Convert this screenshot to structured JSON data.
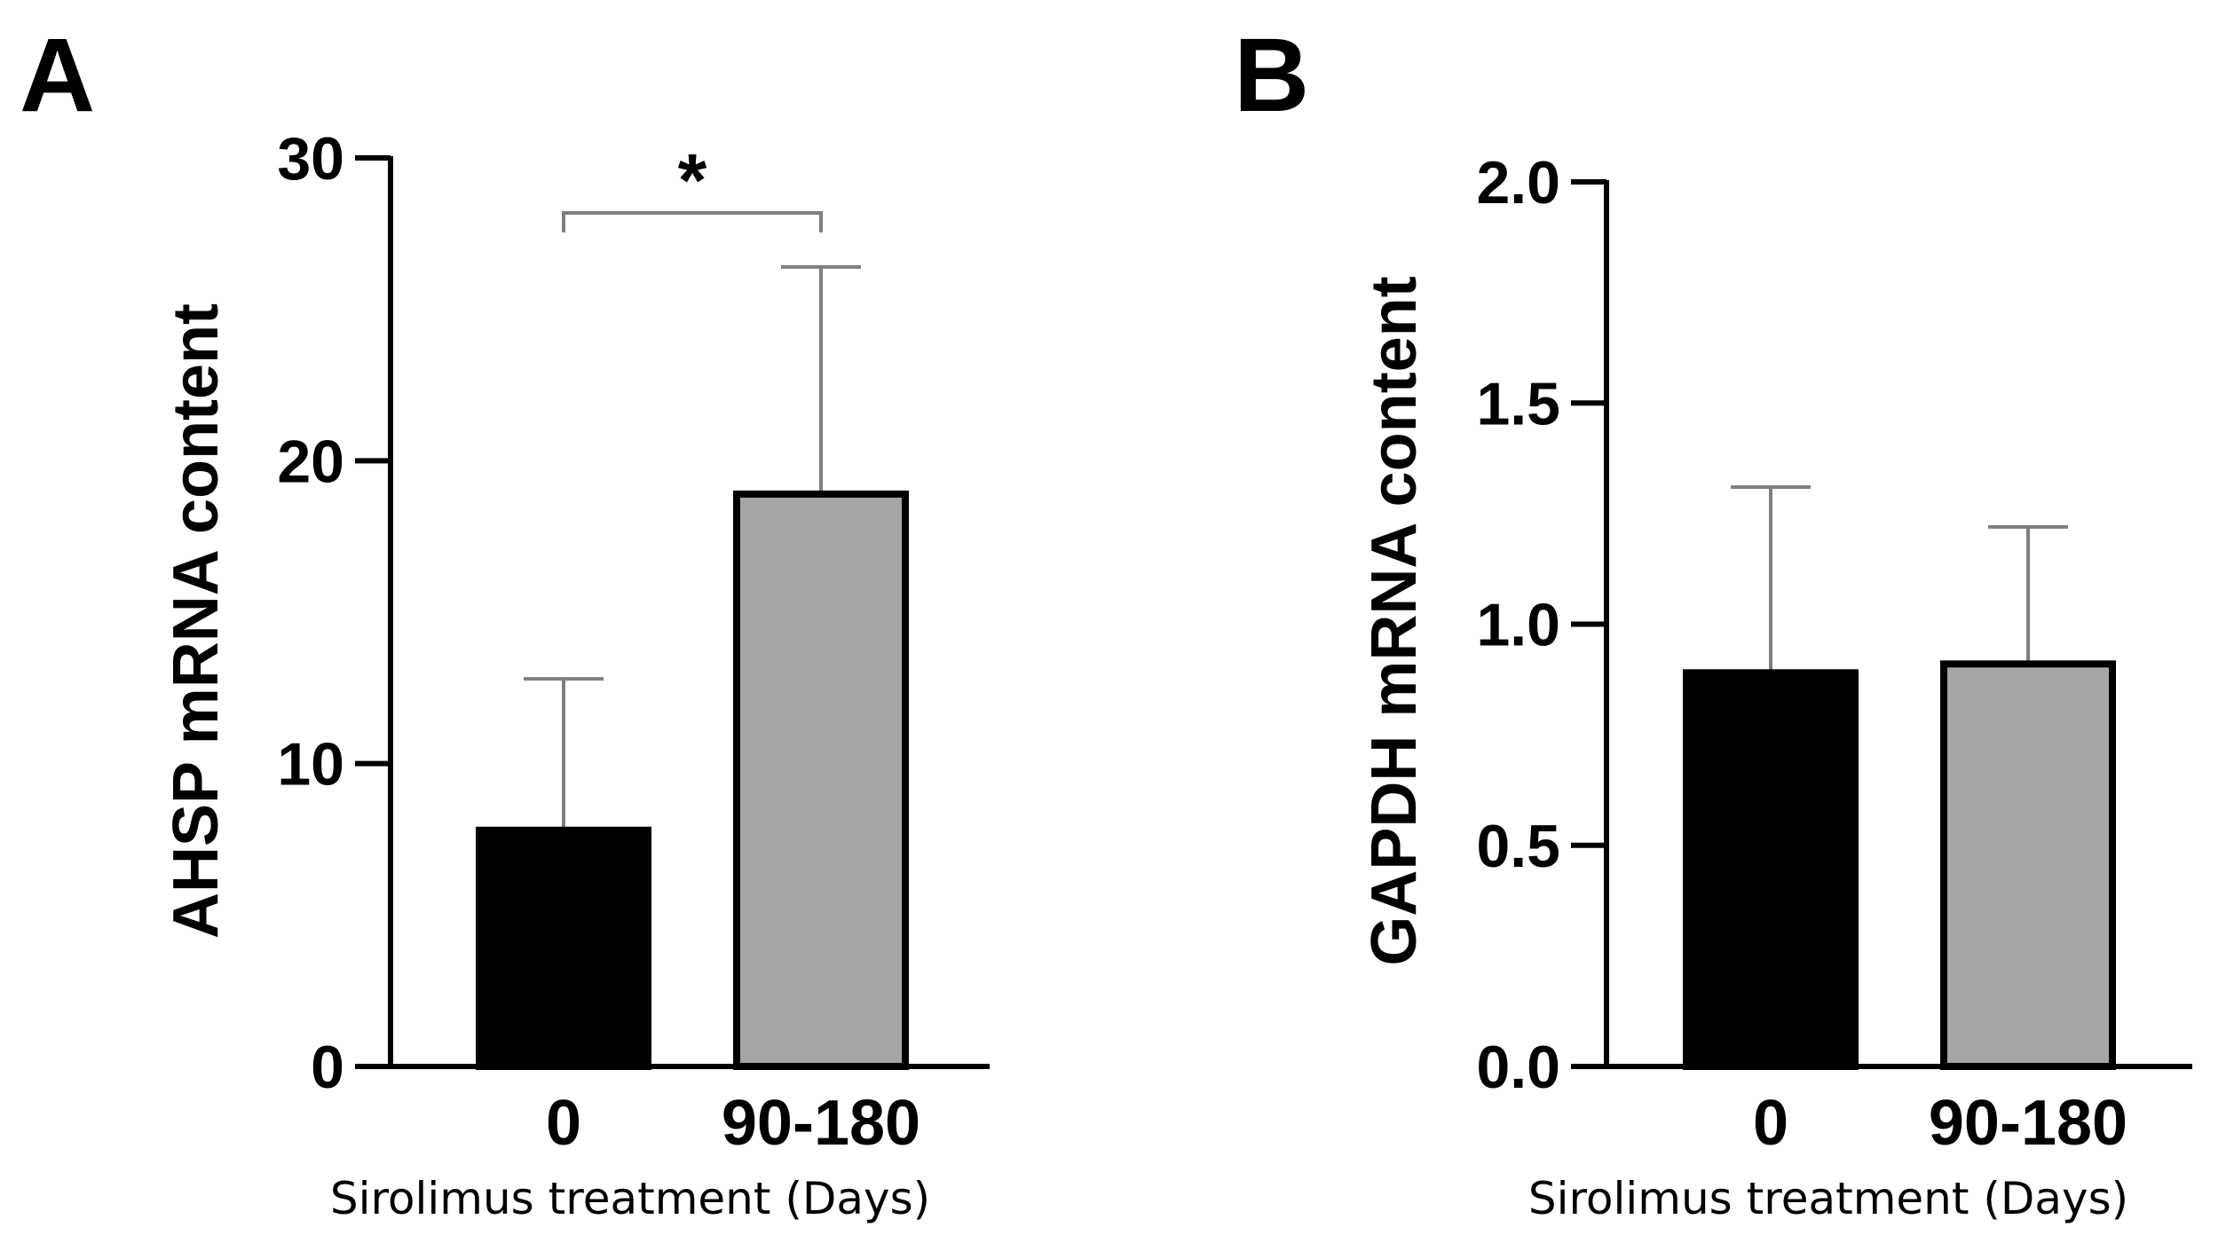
{
  "chart_data": [
    {
      "type": "bar",
      "panel": "A",
      "categories": [
        "0",
        "90-180"
      ],
      "values": [
        7.8,
        18.9
      ],
      "error_upper": [
        12.8,
        26.4
      ],
      "bar_colors": [
        "#000000",
        "#a6a6a6"
      ],
      "ylabel": "AHSP mRNA content",
      "xlabel": "Sirolimus treatment (Days)",
      "ylim": [
        0,
        30
      ],
      "yticks": [
        0,
        10,
        20,
        30
      ],
      "ytick_labels": [
        "0",
        "10",
        "20",
        "30"
      ],
      "significance": {
        "between": [
          0,
          1
        ],
        "label": "*"
      }
    },
    {
      "type": "bar",
      "panel": "B",
      "categories": [
        "0",
        "90-180"
      ],
      "values": [
        0.89,
        0.91
      ],
      "error_upper": [
        1.31,
        1.22
      ],
      "bar_colors": [
        "#000000",
        "#a6a6a6"
      ],
      "ylabel": "GAPDH mRNA content",
      "xlabel": "Sirolimus treatment (Days)",
      "ylim": [
        0,
        2.0
      ],
      "yticks": [
        0,
        0.5,
        1.0,
        1.5,
        2.0
      ],
      "ytick_labels": [
        "0.0",
        "0.5",
        "1.0",
        "1.5",
        "2.0"
      ]
    }
  ]
}
